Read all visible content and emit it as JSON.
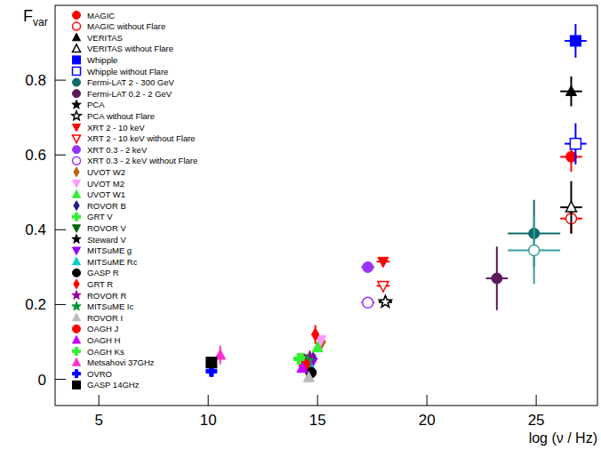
{
  "chart_data": {
    "type": "scatter",
    "xlabel": "log (ν / Hz)",
    "ylabel": "F",
    "ylabel_subscript": "var",
    "xlim": [
      3,
      27.8
    ],
    "ylim": [
      -0.07,
      1.0
    ],
    "xticks": [
      5,
      10,
      15,
      20,
      25
    ],
    "yticks": [
      0,
      0.2,
      0.4,
      0.6,
      0.8
    ],
    "legend": "top-left",
    "grid": false,
    "series": [
      {
        "name": "MAGIC",
        "color": "#ff0000",
        "marker": "circle",
        "x": [
          26.6
        ],
        "values": [
          0.595
        ],
        "x_errors": [
          0.5
        ],
        "y_errors": [
          0.04
        ]
      },
      {
        "name": "MAGIC without Flare",
        "color": "#ff0000",
        "marker": "open-circle",
        "x": [
          26.6
        ],
        "values": [
          0.43
        ],
        "x_errors": [
          0.5
        ],
        "y_errors": [
          0.04
        ]
      },
      {
        "name": "VERITAS",
        "color": "#000000",
        "marker": "triangle",
        "x": [
          26.6
        ],
        "values": [
          0.77
        ],
        "x_errors": [
          0.5
        ],
        "y_errors": [
          0.04
        ]
      },
      {
        "name": "VERITAS without Flare",
        "color": "#000000",
        "marker": "open-triangle",
        "x": [
          26.6
        ],
        "values": [
          0.46
        ],
        "x_errors": [
          0.5
        ],
        "y_errors": [
          0.07
        ]
      },
      {
        "name": "Whipple",
        "color": "#0000ff",
        "marker": "square",
        "x": [
          26.8
        ],
        "values": [
          0.905
        ],
        "x_errors": [
          0.5
        ],
        "y_errors": [
          0.045
        ]
      },
      {
        "name": "Whipple without Flare",
        "color": "#0000ff",
        "marker": "open-square",
        "x": [
          26.8
        ],
        "values": [
          0.63
        ],
        "x_errors": [
          0.5
        ],
        "y_errors": [
          0.055
        ]
      },
      {
        "name": "Fermi-LAT 2 - 300 GeV",
        "color": "#0e6b6b",
        "marker": "circle",
        "x": [
          24.9
        ],
        "values": [
          0.39
        ],
        "x_errors": [
          1.2
        ],
        "y_errors": [
          0.09
        ]
      },
      {
        "name": null,
        "color": "#3d9c9c",
        "marker": "open-circle",
        "x": [
          24.9
        ],
        "values": [
          0.345
        ],
        "x_errors": [
          1.2
        ],
        "y_errors": [
          0.09
        ]
      },
      {
        "name": "Fermi-LAT 0.2 - 2 GeV",
        "color": "#5c1a5c",
        "marker": "circle",
        "x": [
          23.2
        ],
        "values": [
          0.27
        ],
        "x_errors": [
          0.5
        ],
        "y_errors": [
          0.085
        ]
      },
      {
        "name": "PCA",
        "color": "#000000",
        "marker": "star",
        "x": [
          18.1
        ],
        "values": [
          0.207
        ],
        "x_errors": [
          0.3
        ],
        "y_errors": [
          0.005
        ]
      },
      {
        "name": "PCA without Flare",
        "color": "#000000",
        "marker": "open-star",
        "x": [
          18.1
        ],
        "values": [
          0.207
        ],
        "x_errors": [
          0.3
        ],
        "y_errors": [
          0.005
        ]
      },
      {
        "name": "XRT 2 - 10 keV",
        "color": "#ff0000",
        "marker": "triangle-down",
        "x": [
          18.0
        ],
        "values": [
          0.315
        ],
        "x_errors": [
          0.3
        ],
        "y_errors": [
          0.005
        ]
      },
      {
        "name": "XRT 2 - 10 keV without Flare",
        "color": "#ff0000",
        "marker": "open-triangle-down",
        "x": [
          18.0
        ],
        "values": [
          0.25
        ],
        "x_errors": [
          0.3
        ],
        "y_errors": [
          0.005
        ]
      },
      {
        "name": "XRT 0.3 - 2 keV",
        "color": "#9933ff",
        "marker": "circle",
        "x": [
          17.3
        ],
        "values": [
          0.3
        ],
        "x_errors": [
          0.3
        ],
        "y_errors": [
          0.005
        ]
      },
      {
        "name": "XRT 0.3 - 2 keV without Flare",
        "color": "#9933ff",
        "marker": "open-circle",
        "x": [
          17.3
        ],
        "values": [
          0.205
        ],
        "x_errors": [
          0.3
        ],
        "y_errors": [
          0.005
        ]
      },
      {
        "name": "UVOT W2",
        "color": "#b36b1a",
        "marker": "diamond",
        "x": [
          15.2
        ],
        "values": [
          0.1
        ],
        "x_errors": [
          0.05
        ],
        "y_errors": [
          0.01
        ]
      },
      {
        "name": "UVOT M2",
        "color": "#ff99ff",
        "marker": "triangle-down",
        "x": [
          15.15
        ],
        "values": [
          0.105
        ],
        "x_errors": [
          0.05
        ],
        "y_errors": [
          0.01
        ]
      },
      {
        "name": "UVOT W1",
        "color": "#33ee33",
        "marker": "triangle",
        "x": [
          15.0
        ],
        "values": [
          0.085
        ],
        "x_errors": [
          0.05
        ],
        "y_errors": [
          0.01
        ]
      },
      {
        "name": "ROVOR B",
        "color": "#1a237e",
        "marker": "diamond",
        "x": [
          14.8
        ],
        "values": [
          0.055
        ],
        "x_errors": [
          0.05
        ],
        "y_errors": [
          0.01
        ]
      },
      {
        "name": "GRT V",
        "color": "#33ee33",
        "marker": "cross",
        "x": [
          14.35
        ],
        "values": [
          0.055
        ],
        "x_errors": [
          0.05
        ],
        "y_errors": [
          0.01
        ]
      },
      {
        "name": "ROVOR V",
        "color": "#006600",
        "marker": "triangle-down",
        "x": [
          14.55
        ],
        "values": [
          0.045
        ],
        "x_errors": [
          0.05
        ],
        "y_errors": [
          0.01
        ]
      },
      {
        "name": "Steward V",
        "color": "#000000",
        "marker": "star",
        "x": [
          14.55
        ],
        "values": [
          0.04
        ],
        "x_errors": [
          0.05
        ],
        "y_errors": [
          0.01
        ]
      },
      {
        "name": "MITSuME g",
        "color": "#9900ff",
        "marker": "triangle-down",
        "x": [
          14.75
        ],
        "values": [
          0.045
        ],
        "x_errors": [
          0.05
        ],
        "y_errors": [
          0.01
        ]
      },
      {
        "name": "MITSuME Rc",
        "color": "#00cccc",
        "marker": "triangle",
        "x": [
          14.65
        ],
        "values": [
          0.035
        ],
        "x_errors": [
          0.05
        ],
        "y_errors": [
          0.01
        ]
      },
      {
        "name": "GASP R",
        "color": "#000000",
        "marker": "circle",
        "x": [
          14.7
        ],
        "values": [
          0.018
        ],
        "x_errors": [
          0.05
        ],
        "y_errors": [
          0.01
        ]
      },
      {
        "name": "GRT R",
        "color": "#ff0000",
        "marker": "diamond",
        "x": [
          14.9
        ],
        "values": [
          0.12
        ],
        "x_errors": [
          0.05
        ],
        "y_errors": [
          0.025
        ]
      },
      {
        "name": "ROVOR R",
        "color": "#990099",
        "marker": "star",
        "x": [
          14.65
        ],
        "values": [
          0.06
        ],
        "x_errors": [
          0.05
        ],
        "y_errors": [
          0.01
        ]
      },
      {
        "name": "MITSuME Ic",
        "color": "#009933",
        "marker": "star",
        "x": [
          14.55
        ],
        "values": [
          0.05
        ],
        "x_errors": [
          0.05
        ],
        "y_errors": [
          0.01
        ]
      },
      {
        "name": "ROVOR I",
        "color": "#bbbbbb",
        "marker": "triangle",
        "x": [
          14.6
        ],
        "values": [
          0.005
        ],
        "x_errors": [
          0.05
        ],
        "y_errors": [
          0.01
        ]
      },
      {
        "name": "OAGH J",
        "color": "#ff0000",
        "marker": "circle",
        "x": [
          14.4
        ],
        "values": [
          0.04
        ],
        "x_errors": [
          0.05
        ],
        "y_errors": [
          0.01
        ]
      },
      {
        "name": "OAGH H",
        "color": "#cc00ff",
        "marker": "triangle",
        "x": [
          14.3
        ],
        "values": [
          0.03
        ],
        "x_errors": [
          0.05
        ],
        "y_errors": [
          0.01
        ]
      },
      {
        "name": "OAGH Ks",
        "color": "#33ee33",
        "marker": "cross",
        "x": [
          14.15
        ],
        "values": [
          0.055
        ],
        "x_errors": [
          0.05
        ],
        "y_errors": [
          0.01
        ]
      },
      {
        "name": "Metsahovi 37GHz",
        "color": "#ff33cc",
        "marker": "triangle",
        "x": [
          10.55
        ],
        "values": [
          0.065
        ],
        "x_errors": [
          0.05
        ],
        "y_errors": [
          0.025
        ]
      },
      {
        "name": "OVRO",
        "color": "#0000ff",
        "marker": "cross",
        "x": [
          10.15
        ],
        "values": [
          0.022
        ],
        "x_errors": [
          0.05
        ],
        "y_errors": [
          0.005
        ]
      },
      {
        "name": "GASP 14GHz",
        "color": "#000000",
        "marker": "square",
        "x": [
          10.15
        ],
        "values": [
          0.045
        ],
        "x_errors": [
          0.05
        ],
        "y_errors": [
          0.012
        ]
      }
    ]
  }
}
